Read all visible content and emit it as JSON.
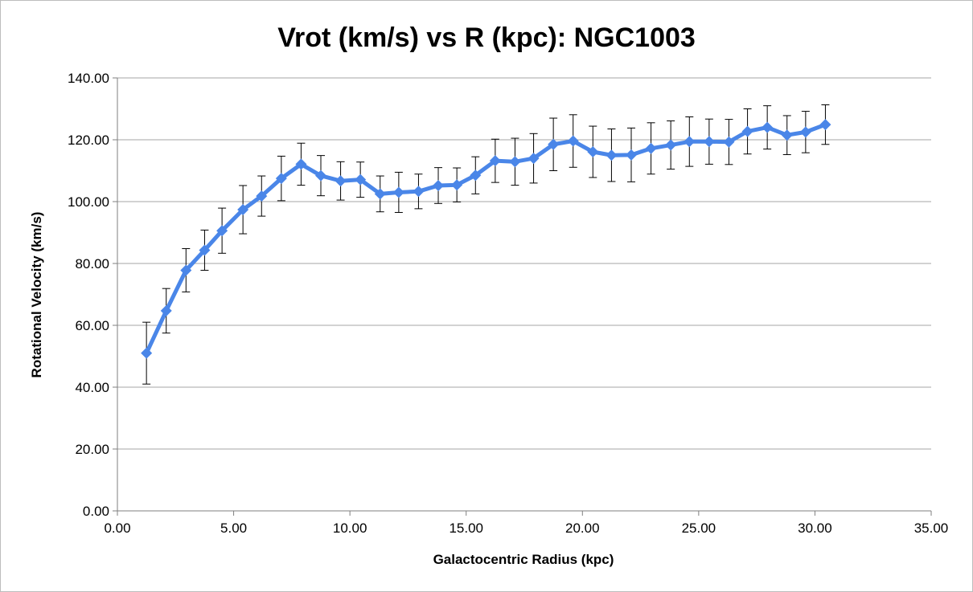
{
  "chart_data": {
    "type": "line",
    "title": "Vrot (km/s) vs R (kpc): NGC1003",
    "xlabel": "Galactocentric Radius (kpc)",
    "ylabel": "Rotational Velocity (km/s)",
    "xlim": [
      0,
      35
    ],
    "ylim": [
      0,
      140
    ],
    "x_ticks": [
      0,
      5,
      10,
      15,
      20,
      25,
      30,
      35
    ],
    "y_ticks": [
      0,
      20,
      40,
      60,
      80,
      100,
      120,
      140
    ],
    "x_tick_labels": [
      "0.00",
      "5.00",
      "10.00",
      "15.00",
      "20.00",
      "25.00",
      "30.00",
      "35.00"
    ],
    "y_tick_labels": [
      "0.00",
      "20.00",
      "40.00",
      "60.00",
      "80.00",
      "100.00",
      "120.00",
      "140.00"
    ],
    "grid": "horizontal",
    "legend": "none",
    "series": [
      {
        "color": "#4a86e8",
        "marker": "diamond",
        "x": [
          1.25,
          2.1,
          2.95,
          3.75,
          4.5,
          5.4,
          6.2,
          7.05,
          7.9,
          8.75,
          9.6,
          10.45,
          11.3,
          12.1,
          12.95,
          13.8,
          14.6,
          15.4,
          16.25,
          17.1,
          17.9,
          18.75,
          19.6,
          20.45,
          21.25,
          22.1,
          22.95,
          23.8,
          24.6,
          25.45,
          26.3,
          27.1,
          27.95,
          28.8,
          29.6,
          30.45
        ],
        "y": [
          51.0,
          64.7,
          77.8,
          84.3,
          90.6,
          97.4,
          101.8,
          107.5,
          112.1,
          108.4,
          106.7,
          107.1,
          102.5,
          103.0,
          103.3,
          105.2,
          105.4,
          108.5,
          113.2,
          112.9,
          114.0,
          118.5,
          119.6,
          116.1,
          115.0,
          115.1,
          117.2,
          118.3,
          119.4,
          119.4,
          119.3,
          122.7,
          124.0,
          121.5,
          122.5,
          124.9
        ],
        "error": [
          10.0,
          7.2,
          7.0,
          6.5,
          7.3,
          7.8,
          6.5,
          7.2,
          6.8,
          6.5,
          6.2,
          5.7,
          5.8,
          6.5,
          5.6,
          5.8,
          5.5,
          6.0,
          7.0,
          7.6,
          8.0,
          8.5,
          8.5,
          8.3,
          8.5,
          8.7,
          8.3,
          7.8,
          8.0,
          7.3,
          7.3,
          7.3,
          7.0,
          6.3,
          6.7,
          6.4
        ]
      }
    ]
  }
}
